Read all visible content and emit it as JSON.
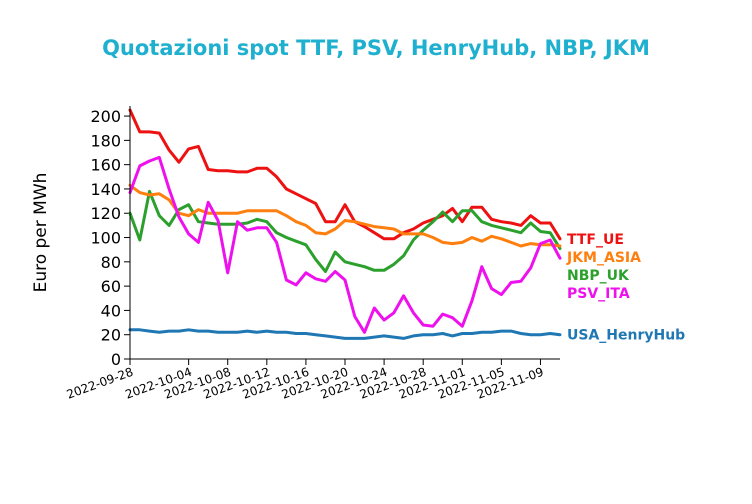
{
  "chart_data": {
    "type": "line",
    "title": "Quotazioni spot TTF, PSV, HenryHub, NBP, JKM",
    "ylabel": "Euro per MWh",
    "xlabel": "",
    "ylim": [
      0,
      205
    ],
    "yticks": [
      0,
      20,
      40,
      60,
      80,
      100,
      120,
      140,
      160,
      180,
      200
    ],
    "xlim": [
      "2022-09-28",
      "2022-11-11"
    ],
    "xticks": [
      "2022-09-28",
      "2022-10-04",
      "2022-10-08",
      "2022-10-12",
      "2022-10-16",
      "2022-10-20",
      "2022-10-24",
      "2022-10-28",
      "2022-11-01",
      "2022-11-05",
      "2022-11-09"
    ],
    "grid": false,
    "legend": "right end of each line",
    "series": [
      {
        "name": "TTF_UE",
        "color": "#ee1111",
        "points": [
          [
            "2022-09-28",
            205
          ],
          [
            "2022-09-29",
            187
          ],
          [
            "2022-09-30",
            187
          ],
          [
            "2022-10-01",
            186
          ],
          [
            "2022-10-02",
            172
          ],
          [
            "2022-10-03",
            162
          ],
          [
            "2022-10-04",
            173
          ],
          [
            "2022-10-05",
            175
          ],
          [
            "2022-10-06",
            156
          ],
          [
            "2022-10-07",
            155
          ],
          [
            "2022-10-08",
            155
          ],
          [
            "2022-10-09",
            154
          ],
          [
            "2022-10-10",
            154
          ],
          [
            "2022-10-11",
            157
          ],
          [
            "2022-10-12",
            157
          ],
          [
            "2022-10-13",
            150
          ],
          [
            "2022-10-14",
            140
          ],
          [
            "2022-10-15",
            136
          ],
          [
            "2022-10-16",
            132
          ],
          [
            "2022-10-17",
            128
          ],
          [
            "2022-10-18",
            113
          ],
          [
            "2022-10-19",
            113
          ],
          [
            "2022-10-20",
            127
          ],
          [
            "2022-10-21",
            113
          ],
          [
            "2022-10-22",
            109
          ],
          [
            "2022-10-23",
            104
          ],
          [
            "2022-10-24",
            99
          ],
          [
            "2022-10-25",
            99
          ],
          [
            "2022-10-26",
            104
          ],
          [
            "2022-10-27",
            107
          ],
          [
            "2022-10-28",
            112
          ],
          [
            "2022-10-29",
            115
          ],
          [
            "2022-10-30",
            118
          ],
          [
            "2022-10-31",
            124
          ],
          [
            "2022-11-01",
            113
          ],
          [
            "2022-11-02",
            125
          ],
          [
            "2022-11-03",
            125
          ],
          [
            "2022-11-04",
            115
          ],
          [
            "2022-11-05",
            113
          ],
          [
            "2022-11-06",
            112
          ],
          [
            "2022-11-07",
            110
          ],
          [
            "2022-11-08",
            118
          ],
          [
            "2022-11-09",
            112
          ],
          [
            "2022-11-10",
            112
          ],
          [
            "2022-11-11",
            99
          ]
        ]
      },
      {
        "name": "NBP_UK",
        "color": "#2ca02c",
        "points": [
          [
            "2022-09-28",
            120
          ],
          [
            "2022-09-29",
            98
          ],
          [
            "2022-09-30",
            138
          ],
          [
            "2022-10-01",
            118
          ],
          [
            "2022-10-02",
            110
          ],
          [
            "2022-10-03",
            123
          ],
          [
            "2022-10-04",
            127
          ],
          [
            "2022-10-05",
            113
          ],
          [
            "2022-10-06",
            112
          ],
          [
            "2022-10-07",
            111
          ],
          [
            "2022-10-08",
            111
          ],
          [
            "2022-10-09",
            111
          ],
          [
            "2022-10-10",
            112
          ],
          [
            "2022-10-11",
            115
          ],
          [
            "2022-10-12",
            113
          ],
          [
            "2022-10-13",
            104
          ],
          [
            "2022-10-14",
            100
          ],
          [
            "2022-10-15",
            97
          ],
          [
            "2022-10-16",
            94
          ],
          [
            "2022-10-17",
            82
          ],
          [
            "2022-10-18",
            72
          ],
          [
            "2022-10-19",
            88
          ],
          [
            "2022-10-20",
            80
          ],
          [
            "2022-10-21",
            78
          ],
          [
            "2022-10-22",
            76
          ],
          [
            "2022-10-23",
            73
          ],
          [
            "2022-10-24",
            73
          ],
          [
            "2022-10-25",
            78
          ],
          [
            "2022-10-26",
            85
          ],
          [
            "2022-10-27",
            98
          ],
          [
            "2022-10-28",
            106
          ],
          [
            "2022-10-29",
            113
          ],
          [
            "2022-10-30",
            121
          ],
          [
            "2022-10-31",
            113
          ],
          [
            "2022-11-01",
            122
          ],
          [
            "2022-11-02",
            122
          ],
          [
            "2022-11-03",
            113
          ],
          [
            "2022-11-04",
            110
          ],
          [
            "2022-11-05",
            108
          ],
          [
            "2022-11-06",
            106
          ],
          [
            "2022-11-07",
            104
          ],
          [
            "2022-11-08",
            112
          ],
          [
            "2022-11-09",
            105
          ],
          [
            "2022-11-10",
            104
          ],
          [
            "2022-11-11",
            91
          ]
        ]
      },
      {
        "name": "JKM_ASIA",
        "color": "#ff7f0e",
        "points": [
          [
            "2022-09-28",
            143
          ],
          [
            "2022-09-29",
            137
          ],
          [
            "2022-09-30",
            135
          ],
          [
            "2022-10-01",
            136
          ],
          [
            "2022-10-02",
            131
          ],
          [
            "2022-10-03",
            120
          ],
          [
            "2022-10-04",
            118
          ],
          [
            "2022-10-05",
            123
          ],
          [
            "2022-10-06",
            120
          ],
          [
            "2022-10-07",
            120
          ],
          [
            "2022-10-08",
            120
          ],
          [
            "2022-10-09",
            120
          ],
          [
            "2022-10-10",
            122
          ],
          [
            "2022-10-11",
            122
          ],
          [
            "2022-10-12",
            122
          ],
          [
            "2022-10-13",
            122
          ],
          [
            "2022-10-14",
            118
          ],
          [
            "2022-10-15",
            113
          ],
          [
            "2022-10-16",
            110
          ],
          [
            "2022-10-17",
            104
          ],
          [
            "2022-10-18",
            103
          ],
          [
            "2022-10-19",
            107
          ],
          [
            "2022-10-20",
            114
          ],
          [
            "2022-10-21",
            113
          ],
          [
            "2022-10-22",
            111
          ],
          [
            "2022-10-23",
            109
          ],
          [
            "2022-10-24",
            108
          ],
          [
            "2022-10-25",
            107
          ],
          [
            "2022-10-26",
            103
          ],
          [
            "2022-10-27",
            103
          ],
          [
            "2022-10-28",
            103
          ],
          [
            "2022-10-29",
            100
          ],
          [
            "2022-10-30",
            96
          ],
          [
            "2022-10-31",
            95
          ],
          [
            "2022-11-01",
            96
          ],
          [
            "2022-11-02",
            100
          ],
          [
            "2022-11-03",
            97
          ],
          [
            "2022-11-04",
            101
          ],
          [
            "2022-11-05",
            99
          ],
          [
            "2022-11-06",
            96
          ],
          [
            "2022-11-07",
            93
          ],
          [
            "2022-11-08",
            95
          ],
          [
            "2022-11-09",
            94
          ],
          [
            "2022-11-10",
            94
          ],
          [
            "2022-11-11",
            93
          ]
        ]
      },
      {
        "name": "PSV_ITA",
        "color": "#ee11ee",
        "points": [
          [
            "2022-09-28",
            137
          ],
          [
            "2022-09-29",
            159
          ],
          [
            "2022-09-30",
            163
          ],
          [
            "2022-10-01",
            166
          ],
          [
            "2022-10-02",
            140
          ],
          [
            "2022-10-03",
            117
          ],
          [
            "2022-10-04",
            103
          ],
          [
            "2022-10-05",
            96
          ],
          [
            "2022-10-06",
            129
          ],
          [
            "2022-10-07",
            114
          ],
          [
            "2022-10-08",
            71
          ],
          [
            "2022-10-09",
            113
          ],
          [
            "2022-10-10",
            106
          ],
          [
            "2022-10-11",
            108
          ],
          [
            "2022-10-12",
            108
          ],
          [
            "2022-10-13",
            96
          ],
          [
            "2022-10-14",
            65
          ],
          [
            "2022-10-15",
            61
          ],
          [
            "2022-10-16",
            71
          ],
          [
            "2022-10-17",
            66
          ],
          [
            "2022-10-18",
            64
          ],
          [
            "2022-10-19",
            72
          ],
          [
            "2022-10-20",
            65
          ],
          [
            "2022-10-21",
            35
          ],
          [
            "2022-10-22",
            22
          ],
          [
            "2022-10-23",
            42
          ],
          [
            "2022-10-24",
            32
          ],
          [
            "2022-10-25",
            38
          ],
          [
            "2022-10-26",
            52
          ],
          [
            "2022-10-27",
            38
          ],
          [
            "2022-10-28",
            28
          ],
          [
            "2022-10-29",
            27
          ],
          [
            "2022-10-30",
            37
          ],
          [
            "2022-10-31",
            34
          ],
          [
            "2022-11-01",
            27
          ],
          [
            "2022-11-02",
            48
          ],
          [
            "2022-11-03",
            76
          ],
          [
            "2022-11-04",
            58
          ],
          [
            "2022-11-05",
            53
          ],
          [
            "2022-11-06",
            63
          ],
          [
            "2022-11-07",
            64
          ],
          [
            "2022-11-08",
            75
          ],
          [
            "2022-11-09",
            95
          ],
          [
            "2022-11-10",
            98
          ],
          [
            "2022-11-11",
            83
          ]
        ]
      },
      {
        "name": "USA_HenryHub",
        "color": "#1f77b4",
        "points": [
          [
            "2022-09-28",
            24
          ],
          [
            "2022-09-29",
            24
          ],
          [
            "2022-09-30",
            23
          ],
          [
            "2022-10-01",
            22
          ],
          [
            "2022-10-02",
            23
          ],
          [
            "2022-10-03",
            23
          ],
          [
            "2022-10-04",
            24
          ],
          [
            "2022-10-05",
            23
          ],
          [
            "2022-10-06",
            23
          ],
          [
            "2022-10-07",
            22
          ],
          [
            "2022-10-08",
            22
          ],
          [
            "2022-10-09",
            22
          ],
          [
            "2022-10-10",
            23
          ],
          [
            "2022-10-11",
            22
          ],
          [
            "2022-10-12",
            23
          ],
          [
            "2022-10-13",
            22
          ],
          [
            "2022-10-14",
            22
          ],
          [
            "2022-10-15",
            21
          ],
          [
            "2022-10-16",
            21
          ],
          [
            "2022-10-17",
            20
          ],
          [
            "2022-10-18",
            19
          ],
          [
            "2022-10-19",
            18
          ],
          [
            "2022-10-20",
            17
          ],
          [
            "2022-10-21",
            17
          ],
          [
            "2022-10-22",
            17
          ],
          [
            "2022-10-23",
            18
          ],
          [
            "2022-10-24",
            19
          ],
          [
            "2022-10-25",
            18
          ],
          [
            "2022-10-26",
            17
          ],
          [
            "2022-10-27",
            19
          ],
          [
            "2022-10-28",
            20
          ],
          [
            "2022-10-29",
            20
          ],
          [
            "2022-10-30",
            21
          ],
          [
            "2022-10-31",
            19
          ],
          [
            "2022-11-01",
            21
          ],
          [
            "2022-11-02",
            21
          ],
          [
            "2022-11-03",
            22
          ],
          [
            "2022-11-04",
            22
          ],
          [
            "2022-11-05",
            23
          ],
          [
            "2022-11-06",
            23
          ],
          [
            "2022-11-07",
            21
          ],
          [
            "2022-11-08",
            20
          ],
          [
            "2022-11-09",
            20
          ],
          [
            "2022-11-10",
            21
          ],
          [
            "2022-11-11",
            20
          ]
        ]
      }
    ]
  }
}
